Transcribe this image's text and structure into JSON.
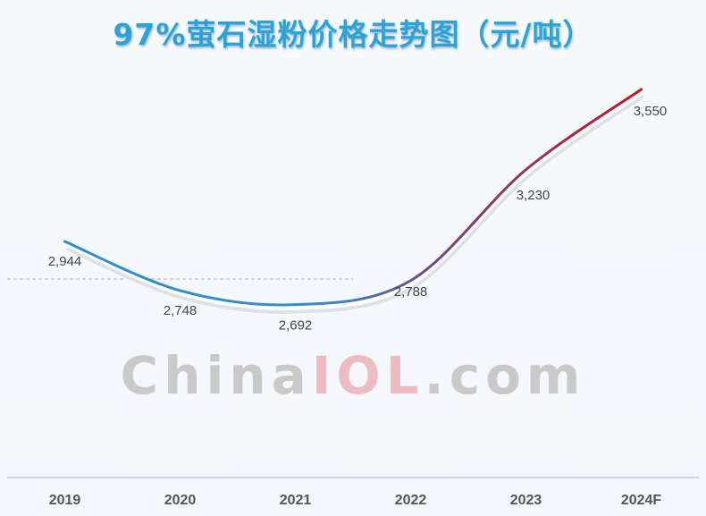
{
  "chart_data": {
    "type": "line",
    "title": "97%萤石湿粉价格走势图（元/吨）",
    "categories": [
      "2019",
      "2020",
      "2021",
      "2022",
      "2023",
      "2024F"
    ],
    "series": [
      {
        "values": [
          2944,
          2748,
          2692,
          2788,
          3230,
          3550
        ]
      }
    ],
    "data_labels": [
      "2,944",
      "2,748",
      "2,692",
      "2,788",
      "3,230",
      "3,550"
    ],
    "reference_line": 2944,
    "grid": "vertical",
    "line_colors": {
      "start": "#2b8fd0",
      "end": "#c8141c"
    },
    "title_color": "#2aa3d8"
  },
  "watermark": {
    "part1": "China",
    "part2": "IOL",
    "part3": ".com"
  }
}
